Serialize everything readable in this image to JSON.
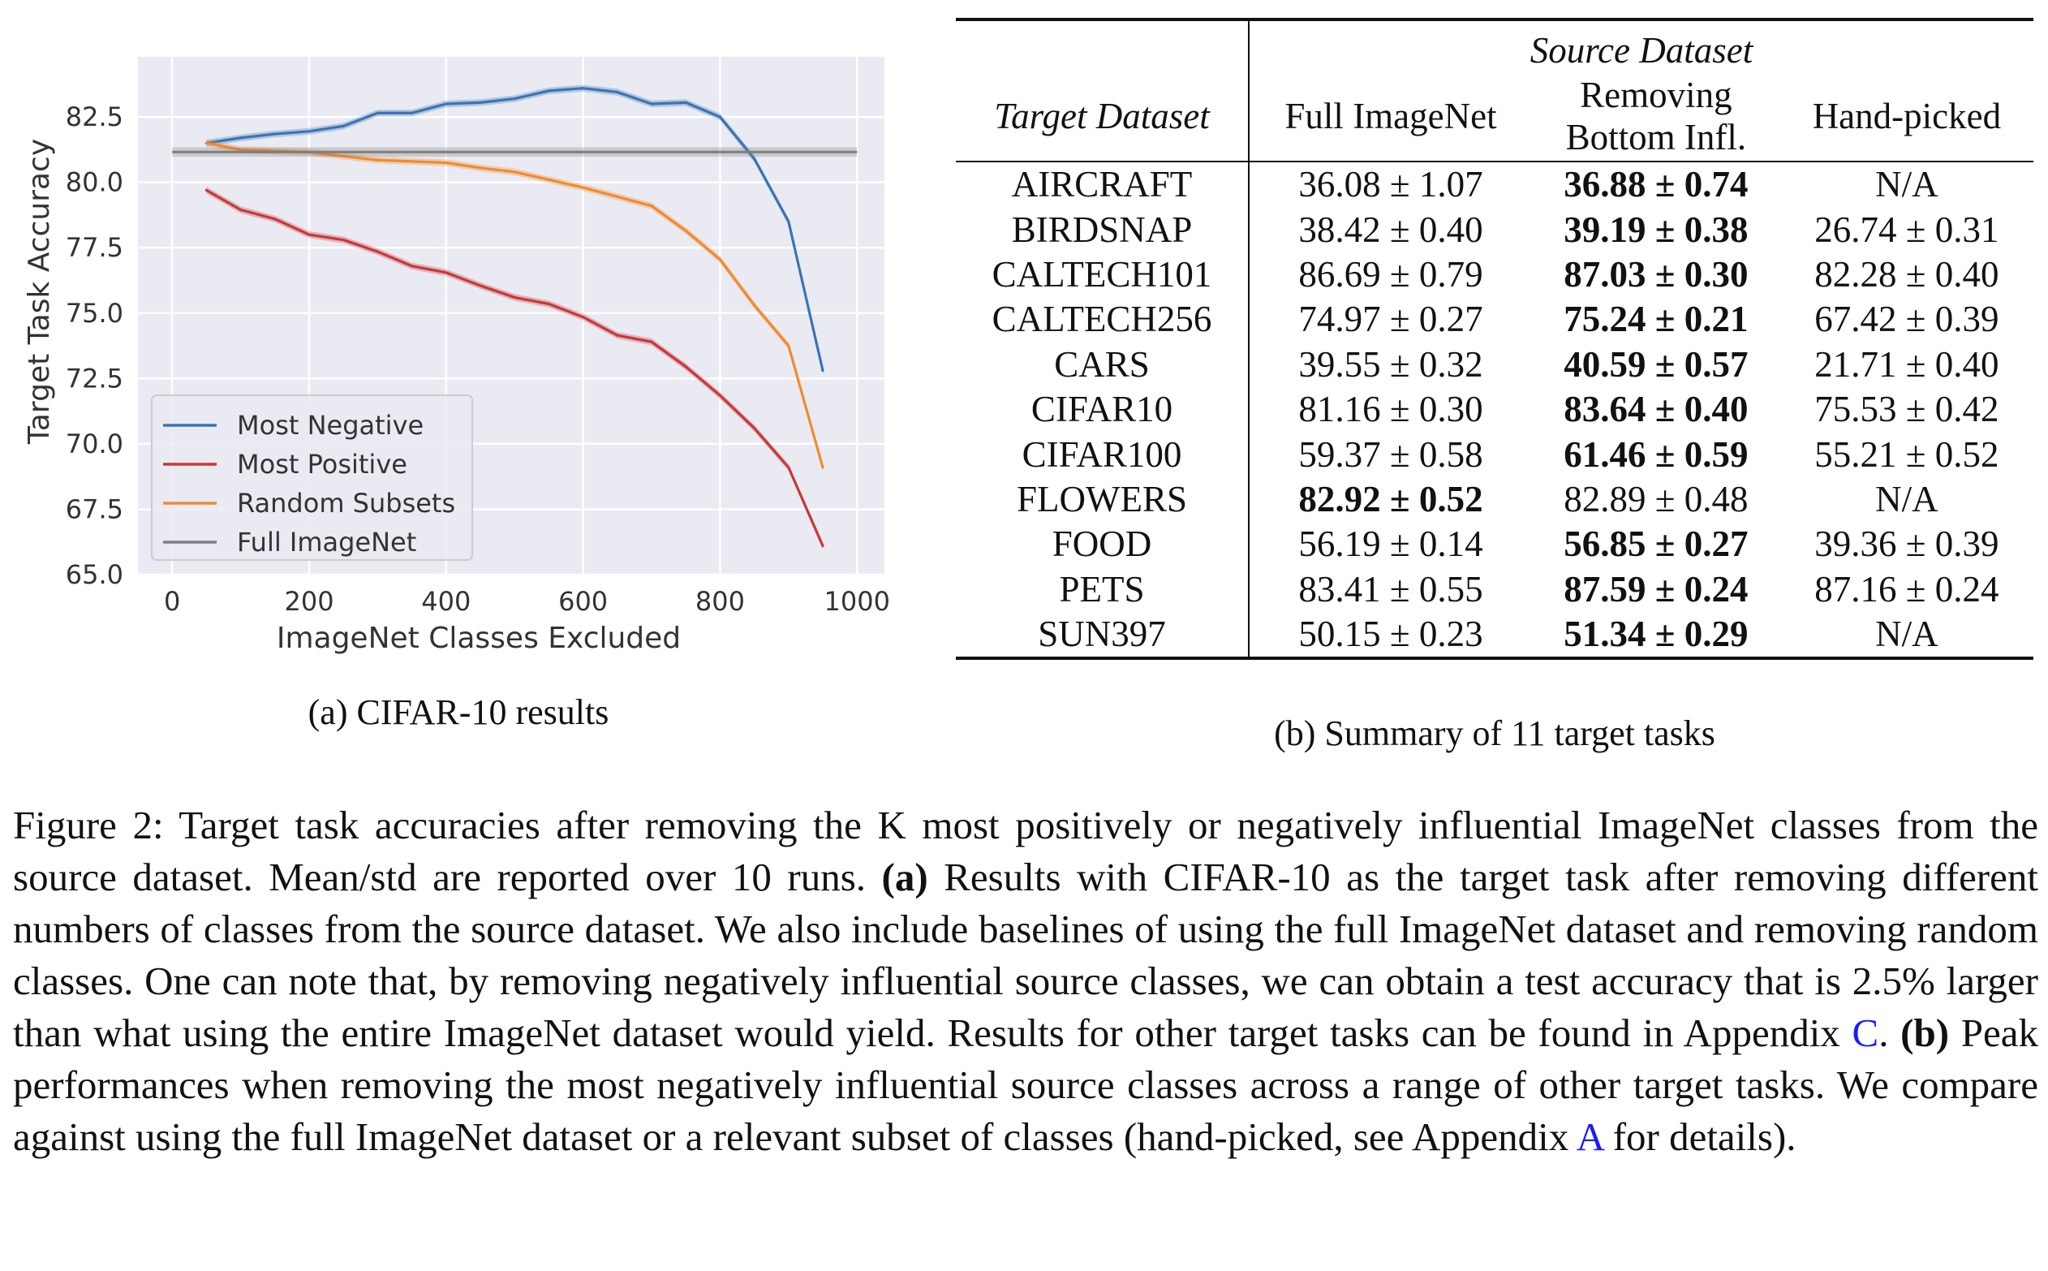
{
  "chart_data": {
    "type": "line",
    "xlabel": "ImageNet Classes Excluded",
    "ylabel": "Target Task Accuracy",
    "xlim": [
      -50,
      1040
    ],
    "ylim": [
      65.0,
      84.8
    ],
    "x_ticks": [
      0,
      200,
      400,
      600,
      800,
      1000
    ],
    "y_ticks": [
      65.0,
      67.5,
      70.0,
      72.5,
      75.0,
      77.5,
      80.0,
      82.5
    ],
    "grid": true,
    "legend_position": "lower-left",
    "background": "#eaeaf2",
    "series": [
      {
        "name": "Most Negative",
        "color": "#3a74b4",
        "x": [
          50,
          100,
          150,
          200,
          250,
          300,
          350,
          400,
          450,
          500,
          550,
          600,
          650,
          700,
          750,
          800,
          850,
          900,
          950
        ],
        "y": [
          81.5,
          81.7,
          81.85,
          81.95,
          82.15,
          82.65,
          82.65,
          83.0,
          83.05,
          83.2,
          83.5,
          83.6,
          83.45,
          83.0,
          83.05,
          82.5,
          80.9,
          78.5,
          72.8
        ]
      },
      {
        "name": "Most Positive",
        "color": "#c8383a",
        "x": [
          50,
          100,
          150,
          200,
          250,
          300,
          350,
          400,
          450,
          500,
          550,
          600,
          650,
          700,
          750,
          800,
          850,
          900,
          950
        ],
        "y": [
          79.7,
          78.95,
          78.6,
          78.0,
          77.8,
          77.35,
          76.8,
          76.55,
          76.05,
          75.6,
          75.35,
          74.85,
          74.15,
          73.9,
          72.95,
          71.85,
          70.6,
          69.1,
          66.1
        ]
      },
      {
        "name": "Random Subsets",
        "color": "#f28a2e",
        "x": [
          50,
          100,
          150,
          200,
          250,
          300,
          350,
          400,
          450,
          500,
          550,
          600,
          650,
          700,
          750,
          800,
          850,
          900,
          950
        ],
        "y": [
          81.5,
          81.25,
          81.2,
          81.15,
          81.0,
          80.85,
          80.8,
          80.75,
          80.55,
          80.4,
          80.1,
          79.8,
          79.45,
          79.1,
          78.15,
          77.05,
          75.3,
          73.75,
          69.1
        ]
      },
      {
        "name": "Full ImageNet",
        "color": "#7f7f7f",
        "x": [
          0,
          1000
        ],
        "y": [
          81.16,
          81.16
        ]
      }
    ]
  },
  "caption_a": "(a) CIFAR-10 results",
  "table": {
    "source_header": "Source Dataset",
    "target_header": "Target Dataset",
    "col_full": "Full ImageNet",
    "col_remove_line1": "Removing",
    "col_remove_line2": "Bottom Infl.",
    "col_hand": "Hand-picked",
    "rows": [
      {
        "name": "AIRCRAFT",
        "full": "36.08 ± 1.07",
        "remove": "36.88 ± 0.74",
        "hand": "N/A",
        "bold": "remove"
      },
      {
        "name": "BIRDSNAP",
        "full": "38.42 ± 0.40",
        "remove": "39.19 ± 0.38",
        "hand": "26.74 ± 0.31",
        "bold": "remove"
      },
      {
        "name": "CALTECH101",
        "full": "86.69 ± 0.79",
        "remove": "87.03 ± 0.30",
        "hand": "82.28 ± 0.40",
        "bold": "remove"
      },
      {
        "name": "CALTECH256",
        "full": "74.97 ± 0.27",
        "remove": "75.24 ± 0.21",
        "hand": "67.42 ± 0.39",
        "bold": "remove"
      },
      {
        "name": "CARS",
        "full": "39.55 ± 0.32",
        "remove": "40.59 ± 0.57",
        "hand": "21.71 ± 0.40",
        "bold": "remove"
      },
      {
        "name": "CIFAR10",
        "full": "81.16 ± 0.30",
        "remove": "83.64 ± 0.40",
        "hand": "75.53 ± 0.42",
        "bold": "remove"
      },
      {
        "name": "CIFAR100",
        "full": "59.37 ± 0.58",
        "remove": "61.46 ± 0.59",
        "hand": "55.21 ± 0.52",
        "bold": "remove"
      },
      {
        "name": "FLOWERS",
        "full": "82.92 ± 0.52",
        "remove": "82.89 ± 0.48",
        "hand": "N/A",
        "bold": "full"
      },
      {
        "name": "FOOD",
        "full": "56.19 ± 0.14",
        "remove": "56.85 ± 0.27",
        "hand": "39.36 ± 0.39",
        "bold": "remove"
      },
      {
        "name": "PETS",
        "full": "83.41 ± 0.55",
        "remove": "87.59 ± 0.24",
        "hand": "87.16 ± 0.24",
        "bold": "remove"
      },
      {
        "name": "SUN397",
        "full": "50.15 ± 0.23",
        "remove": "51.34 ± 0.29",
        "hand": "N/A",
        "bold": "remove"
      }
    ]
  },
  "caption_b": "(b) Summary of 11 target tasks",
  "figure_caption": {
    "p1": "Figure 2: Target task accuracies after removing the K most positively or negatively influential ImageNet classes from the source dataset.  Mean/std are reported over 10 runs. ",
    "a_label": "(a)",
    "p2": " Results with CIFAR-10 as the target task after removing different numbers of classes from the source dataset. We also include baselines of using the full ImageNet dataset and removing random classes. One can note that, by removing negatively influential source classes, we can obtain a test accuracy that is 2.5% larger than what using the entire ImageNet dataset would yield. Results for other target tasks can be found in Appendix ",
    "ref_c": "C",
    "p3": ". ",
    "b_label": "(b)",
    "p4": " Peak performances when removing the most negatively influential source classes across a range of other target tasks. We compare against using the full ImageNet dataset or a relevant subset of classes (hand-picked, see Appendix ",
    "ref_a": "A",
    "p5": " for details)."
  }
}
